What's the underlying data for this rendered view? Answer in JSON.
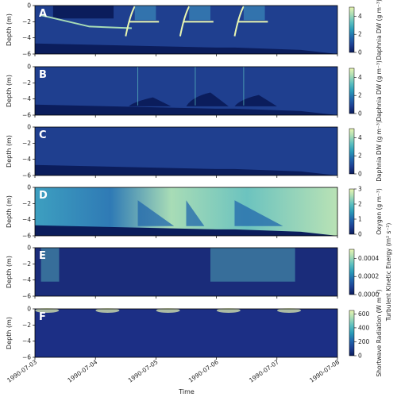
{
  "chart_data": {
    "type": "heatmap",
    "xlabel": "Time",
    "ylabel": "Depth (m)",
    "ylim": [
      -6,
      0
    ],
    "yticks": [
      0,
      -2,
      -4,
      -6
    ],
    "x_tick_labels": [
      "1990-07-03",
      "1990-07-04",
      "1990-07-05",
      "1990-07-06",
      "1990-07-07",
      "1990-07-08"
    ],
    "colormap": "YlGnBu",
    "colormap_stops": [
      "#0b1d5c",
      "#1d3f93",
      "#2167ac",
      "#2a9bb8",
      "#5cbfc0",
      "#a8dcb6",
      "#e9f6b1"
    ],
    "panels": [
      {
        "label": "A",
        "colorbar_label": "Daphnia DW (g m⁻³)",
        "cbar_ticks": [
          "0",
          "2",
          "4"
        ],
        "cbar_range": [
          0,
          5
        ]
      },
      {
        "label": "B",
        "colorbar_label": "Daphnia DW (g m⁻³)",
        "cbar_ticks": [
          "0",
          "2",
          "4"
        ],
        "cbar_range": [
          0,
          5
        ]
      },
      {
        "label": "C",
        "colorbar_label": "Daphnia DW (g m⁻³)",
        "cbar_ticks": [
          "0",
          "2",
          "4"
        ],
        "cbar_range": [
          0,
          5
        ]
      },
      {
        "label": "D",
        "colorbar_label": "Oxygen (g m⁻³)",
        "cbar_ticks": [
          "0",
          "1",
          "2",
          "3"
        ],
        "cbar_range": [
          0,
          3
        ]
      },
      {
        "label": "E",
        "colorbar_label": "Turbulent Kinetic Energy (m² s⁻²)",
        "cbar_ticks": [
          "0.0000",
          "0.0002",
          "0.0004"
        ],
        "cbar_range": [
          0,
          0.0005
        ]
      },
      {
        "label": "F",
        "colorbar_label": "Shortwave Radiation (W m⁻²)",
        "cbar_ticks": [
          "0",
          "200",
          "400",
          "600"
        ],
        "cbar_range": [
          0,
          650
        ]
      }
    ]
  }
}
